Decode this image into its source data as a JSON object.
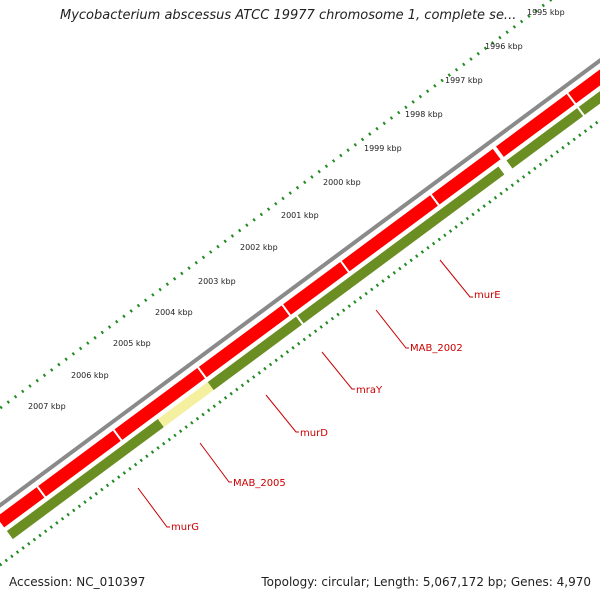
{
  "map": {
    "title": "Mycobacterium abscessus ATCC 19977 chromosome 1, complete se...",
    "accession": "Accession: NC_010397",
    "summary": "Topology: circular; Length: 5,067,172 bp; Genes: 4,970"
  },
  "ruler": {
    "ticks": [
      "1995 kbp",
      "1996 kbp",
      "1997 kbp",
      "1998 kbp",
      "1999 kbp",
      "2000 kbp",
      "2001 kbp",
      "2002 kbp",
      "2003 kbp",
      "2004 kbp",
      "2005 kbp",
      "2006 kbp",
      "2007 kbp"
    ]
  },
  "genes": [
    {
      "name": "murE",
      "color": "#cc0000",
      "highlighted": false
    },
    {
      "name": "MAB_2002",
      "color": "#cc0000",
      "highlighted": false
    },
    {
      "name": "mraY",
      "color": "#cc0000",
      "highlighted": false
    },
    {
      "name": "murD",
      "color": "#cc0000",
      "highlighted": false
    },
    {
      "name": "MAB_2005",
      "color": "#cc0000",
      "highlighted": true
    },
    {
      "name": "murG",
      "color": "#cc0000",
      "highlighted": false
    }
  ],
  "colors": {
    "backbone": "#8a8a8a",
    "cds_forward": "#ff0000",
    "gene_track": "#6b8e23",
    "highlight": "#f5f0a0",
    "ticks": "#228b22",
    "label": "#cc0000"
  }
}
